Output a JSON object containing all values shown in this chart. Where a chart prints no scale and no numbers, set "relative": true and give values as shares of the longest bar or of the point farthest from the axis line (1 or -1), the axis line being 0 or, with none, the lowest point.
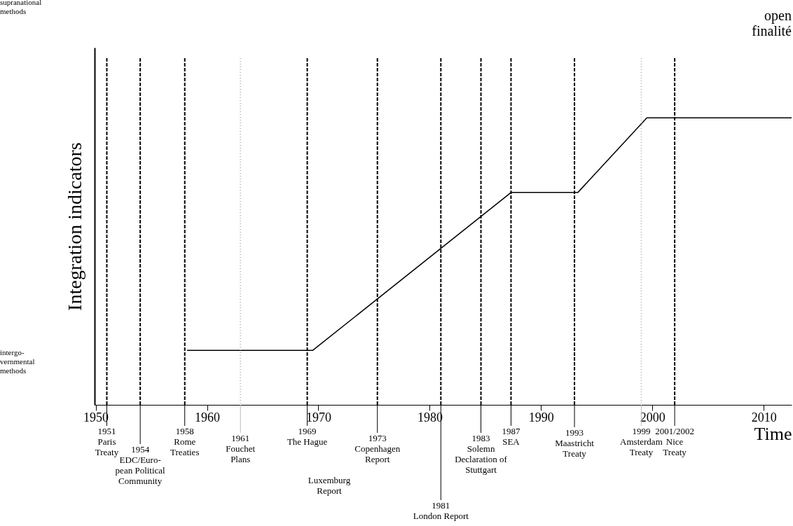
{
  "chart_data": {
    "type": "line",
    "relative": true,
    "xlabel": "Time",
    "ylabel": "Integration indicators",
    "x": [
      1958.2,
      1969.5,
      1987.3,
      1993.3,
      1999.5,
      2012.5
    ],
    "series": [
      {
        "color": "#000000",
        "values": [
          0.19,
          0.19,
          0.74,
          0.74,
          1,
          1
        ]
      }
    ],
    "xlim": [
      1949.9,
      2012.5
    ],
    "xticks": [
      1950,
      1960,
      1970,
      1980,
      1990,
      2000,
      2010
    ],
    "grid": false,
    "legend": false,
    "marker": "none",
    "line_style": "solid",
    "ref_lines": [
      {
        "axis": "x",
        "value": 1951,
        "label": "1951\nParis\nTreaty",
        "color": "#000000",
        "line_style": "dashed"
      },
      {
        "axis": "x",
        "value": 1954,
        "label": "1954\n\nEDC/Euro-\npean Political\nCommunity",
        "color": "#000000",
        "line_style": "dashed"
      },
      {
        "axis": "x",
        "value": 1958,
        "label": "1958\nRome\nTreaties",
        "color": "#000000",
        "line_style": "dashed"
      },
      {
        "axis": "x",
        "value": 1963,
        "label": "1961\nFouchet\nPlans",
        "color": "#bbbbbb",
        "line_style": "dotted"
      },
      {
        "axis": "x",
        "value": 1969,
        "label": "1969\nThe Hague",
        "color": "#000000",
        "line_style": "dashed"
      },
      {
        "axis": "x",
        "value": 1975.3,
        "label": "1973\nCopenhagen\nReport",
        "color": "#000000",
        "line_style": "dashed"
      },
      {
        "axis": "x",
        "value": 1981,
        "label": "1981\nLondon Report",
        "color": "#000000",
        "line_style": "dashed"
      },
      {
        "axis": "x",
        "value": 1984.6,
        "label": "1983\nSolemn\nDeclaration of\nStuttgart",
        "color": "#000000",
        "line_style": "dashed"
      },
      {
        "axis": "x",
        "value": 1987.3,
        "label": "1987\nSEA",
        "color": "#000000",
        "line_style": "dashed"
      },
      {
        "axis": "x",
        "value": 1993,
        "label": "1993\nMaastricht\nTreaty",
        "color": "#000000",
        "line_style": "dashed"
      },
      {
        "axis": "x",
        "value": 1999,
        "label": "1999\nAmsterdam\nTreaty",
        "color": "#bbbbbb",
        "line_style": "dotted"
      },
      {
        "axis": "x",
        "value": 2002,
        "label": "2001/2002\nNice\nTreaty",
        "color": "#000000",
        "line_style": "dashed"
      }
    ],
    "annotations": [
      "supranational\nmethods",
      "intergo-\nvernmental\nmethods",
      "open\nfinalité",
      "Luxemburg\nReport"
    ]
  }
}
